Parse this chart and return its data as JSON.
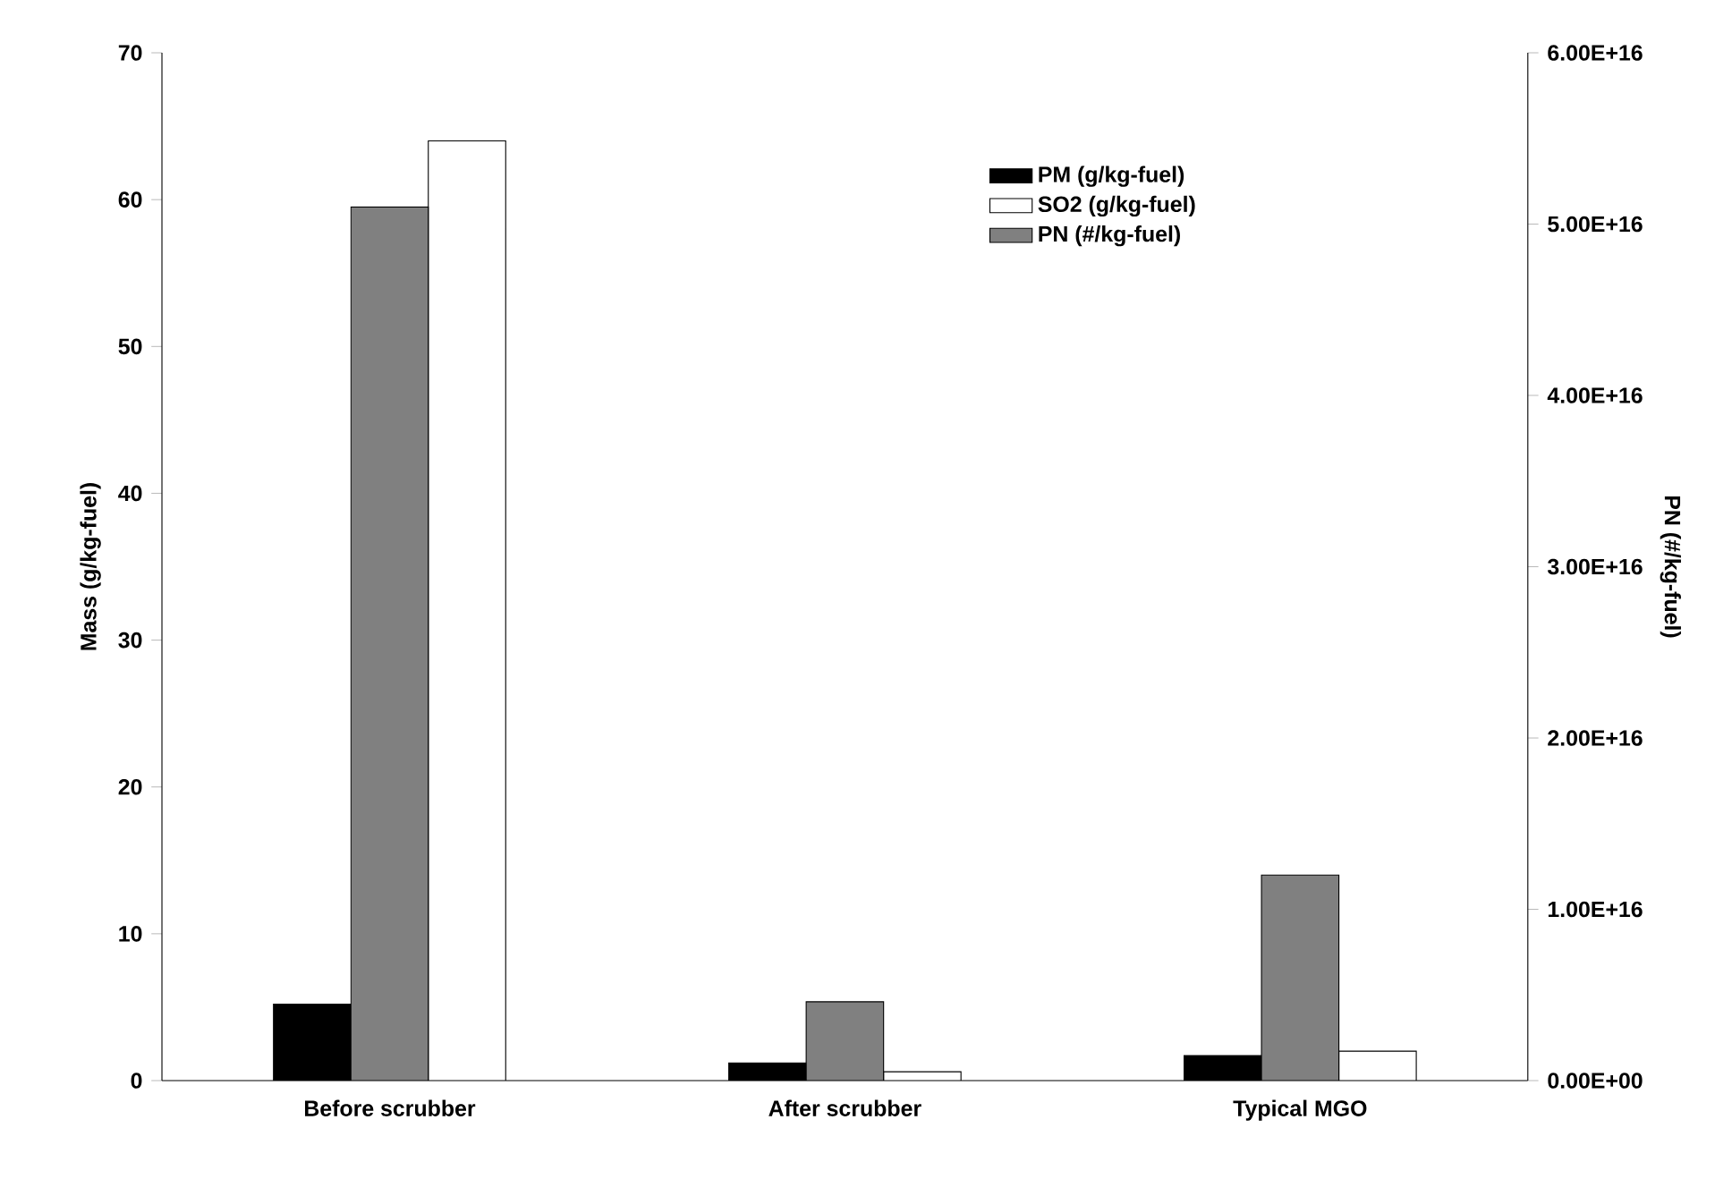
{
  "chart_data": {
    "type": "bar",
    "categories": [
      "Before scrubber",
      "After scrubber",
      "Typical MGO"
    ],
    "ylabel": "Mass (g/kg-fuel)",
    "y2label": "PN (#/kg-fuel)",
    "ylim": [
      0,
      70
    ],
    "yticks": [
      0,
      10,
      20,
      30,
      40,
      50,
      60,
      70
    ],
    "y2lim": [
      0,
      6e+16
    ],
    "y2ticks": [
      {
        "value": 0,
        "label": "0.00E+00"
      },
      {
        "value": 1e+16,
        "label": "1.00E+16"
      },
      {
        "value": 2e+16,
        "label": "2.00E+16"
      },
      {
        "value": 3e+16,
        "label": "3.00E+16"
      },
      {
        "value": 4e+16,
        "label": "4.00E+16"
      },
      {
        "value": 5e+16,
        "label": "5.00E+16"
      },
      {
        "value": 6e+16,
        "label": "6.00E+16"
      }
    ],
    "legend": "top right",
    "series": [
      {
        "name": "PM (g/kg-fuel)",
        "color": "#000000",
        "values": [
          5.2,
          1.2,
          1.7
        ]
      },
      {
        "name": "PN (#/kg-fuel)",
        "color": "#808080",
        "axis": "y2",
        "values": [
          5.1e+16,
          4600000000000000.0,
          1.2e+16
        ]
      },
      {
        "name": "SO2 (g/kg-fuel)",
        "color": "#ffffff",
        "values": [
          64,
          0.6,
          2.0
        ]
      }
    ]
  }
}
